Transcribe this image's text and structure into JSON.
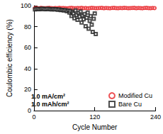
{
  "chart_data": {
    "type": "scatter",
    "x_label": "Cycle Number",
    "y_label": "Coulombic efficiency (%)",
    "xlim": [
      0,
      240
    ],
    "xticks": [
      0,
      120,
      240
    ],
    "ylim": [
      0,
      100
    ],
    "yticks": [
      0,
      20,
      40,
      60,
      80,
      100
    ],
    "grid": false,
    "legend": "lower right",
    "annotations": [
      "1.0 mA/cm²",
      "1.0 mAh/cm²"
    ],
    "series": [
      {
        "name": "Modified Cu",
        "color": "#e8262a",
        "marker": "circle",
        "x": [
          2,
          6,
          10,
          14,
          18,
          22,
          26,
          30,
          34,
          38,
          42,
          46,
          50,
          54,
          58,
          62,
          66,
          70,
          74,
          78,
          82,
          86,
          90,
          94,
          98,
          102,
          106,
          110,
          114,
          118,
          122,
          126,
          130,
          134,
          138,
          142,
          146,
          150,
          154,
          158,
          162,
          166,
          170,
          174,
          178,
          182,
          186,
          190,
          194,
          198,
          202,
          206,
          210,
          214,
          218,
          222,
          226,
          230,
          234,
          238
        ],
        "values": [
          97.6,
          97.8,
          97.5,
          97.9,
          97.7,
          97.6,
          97.8,
          97.9,
          97.7,
          97.5,
          97.8,
          97.6,
          97.9,
          97.7,
          97.8,
          97.6,
          97.5,
          97.8,
          97.9,
          97.7,
          97.6,
          97.8,
          97.7,
          97.9,
          97.6,
          97.8,
          97.5,
          97.7,
          97.9,
          97.8,
          97.6,
          97.7,
          97.8,
          97.9,
          97.6,
          97.8,
          97.7,
          97.5,
          97.8,
          97.9,
          97.7,
          97.6,
          97.8,
          97.7,
          97.9,
          97.8,
          97.6,
          97.7,
          97.8,
          97.9,
          97.6,
          97.8,
          97.7,
          97.5,
          97.8,
          97.9,
          97.7,
          97.6,
          97.8,
          97.7
        ]
      },
      {
        "name": "Bare Cu",
        "color": "#222222",
        "marker": "square",
        "x": [
          2,
          5,
          8,
          11,
          14,
          17,
          20,
          23,
          26,
          29,
          32,
          35,
          38,
          41,
          44,
          47,
          50,
          53,
          56,
          59,
          62,
          65,
          68,
          70,
          72,
          74,
          76,
          78,
          80,
          82,
          84,
          86,
          88,
          90,
          92,
          94,
          96,
          98,
          100,
          102,
          104,
          106,
          108,
          110,
          112,
          114,
          116,
          118,
          120,
          122
        ],
        "values": [
          96.5,
          96.8,
          97.0,
          96.7,
          96.9,
          97.1,
          96.8,
          96.6,
          97.0,
          96.9,
          96.7,
          96.5,
          96.8,
          96.4,
          96.6,
          96.2,
          96.5,
          95.8,
          96.0,
          95.5,
          95.7,
          94.8,
          95.2,
          93.5,
          95.0,
          90.2,
          94.0,
          92.5,
          88.0,
          95.5,
          91.0,
          86.5,
          93.0,
          89.5,
          94.5,
          84.0,
          90.5,
          87.0,
          92.0,
          80.5,
          88.5,
          93.5,
          78.0,
          85.5,
          90.0,
          82.0,
          75.0,
          87.5,
          92.5,
          73.0
        ]
      }
    ]
  }
}
